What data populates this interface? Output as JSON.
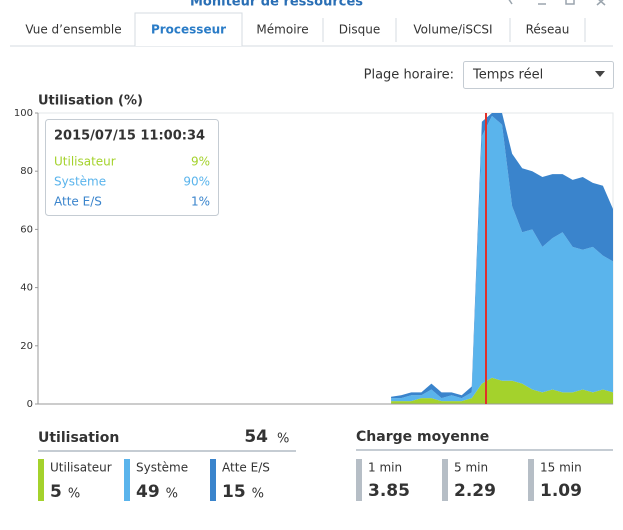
{
  "window": {
    "title": "Moniteur de ressources"
  },
  "tabs": [
    "Vue d’ensemble",
    "Processeur",
    "Mémoire",
    "Disque",
    "Volume/iSCSI",
    "Réseau"
  ],
  "active_tab": 1,
  "time_range": {
    "label": "Plage horaire:",
    "value": "Temps réel"
  },
  "chart": {
    "type": "area",
    "stacked": true,
    "title": "Utilisation (%)",
    "ylim": [
      0,
      100
    ],
    "yticks": [
      0,
      20,
      40,
      60,
      80,
      100
    ],
    "series": [
      {
        "name": "Utilisateur",
        "color": "#a4d22c",
        "values": [
          null,
          null,
          null,
          null,
          null,
          null,
          null,
          null,
          null,
          null,
          null,
          null,
          null,
          null,
          null,
          null,
          null,
          null,
          null,
          null,
          null,
          null,
          null,
          null,
          null,
          null,
          null,
          null,
          null,
          null,
          null,
          null,
          null,
          null,
          null,
          1,
          1,
          1,
          2,
          2,
          1,
          1,
          1,
          2,
          7,
          9,
          8,
          8,
          7,
          5,
          4,
          5,
          4,
          4,
          5,
          4,
          5,
          4
        ]
      },
      {
        "name": "Système",
        "color": "#5ab4ec",
        "values": [
          null,
          null,
          null,
          null,
          null,
          null,
          null,
          null,
          null,
          null,
          null,
          null,
          null,
          null,
          null,
          null,
          null,
          null,
          null,
          null,
          null,
          null,
          null,
          null,
          null,
          null,
          null,
          null,
          null,
          null,
          null,
          null,
          null,
          null,
          null,
          1,
          1,
          2,
          1,
          3,
          1,
          2,
          1,
          2,
          85,
          90,
          88,
          60,
          52,
          55,
          50,
          52,
          55,
          50,
          48,
          50,
          46,
          45
        ]
      },
      {
        "name": "Atte E/S",
        "color": "#3a84cc",
        "values": [
          null,
          null,
          null,
          null,
          null,
          null,
          null,
          null,
          null,
          null,
          null,
          null,
          null,
          null,
          null,
          null,
          null,
          null,
          null,
          null,
          null,
          null,
          null,
          null,
          null,
          null,
          null,
          null,
          null,
          null,
          null,
          null,
          null,
          null,
          null,
          0.5,
          1,
          1,
          1,
          2,
          2,
          1,
          1,
          2,
          5,
          1,
          4,
          18,
          22,
          20,
          24,
          22,
          20,
          23,
          25,
          22,
          24,
          18
        ]
      }
    ],
    "tooltip": {
      "time": "2015/07/15 11:00:34",
      "rows": [
        {
          "name": "Utilisateur",
          "value": "9%"
        },
        {
          "name": "Système",
          "value": "90%"
        },
        {
          "name": "Atte E/S",
          "value": "1%"
        }
      ]
    }
  },
  "utilisation": {
    "title": "Utilisation",
    "total": 54,
    "unit": "%",
    "items": [
      {
        "name": "Utilisateur",
        "value": 5,
        "unit": "%",
        "color": "#a4d22c"
      },
      {
        "name": "Système",
        "value": 49,
        "unit": "%",
        "color": "#5ab4ec"
      },
      {
        "name": "Atte E/S",
        "value": 15,
        "unit": "%",
        "color": "#3a84cc"
      }
    ]
  },
  "load": {
    "title": "Charge moyenne",
    "items": [
      {
        "name": "1 min",
        "value": 3.85
      },
      {
        "name": "5 min",
        "value": 2.29
      },
      {
        "name": "15 min",
        "value": 1.09
      }
    ]
  }
}
